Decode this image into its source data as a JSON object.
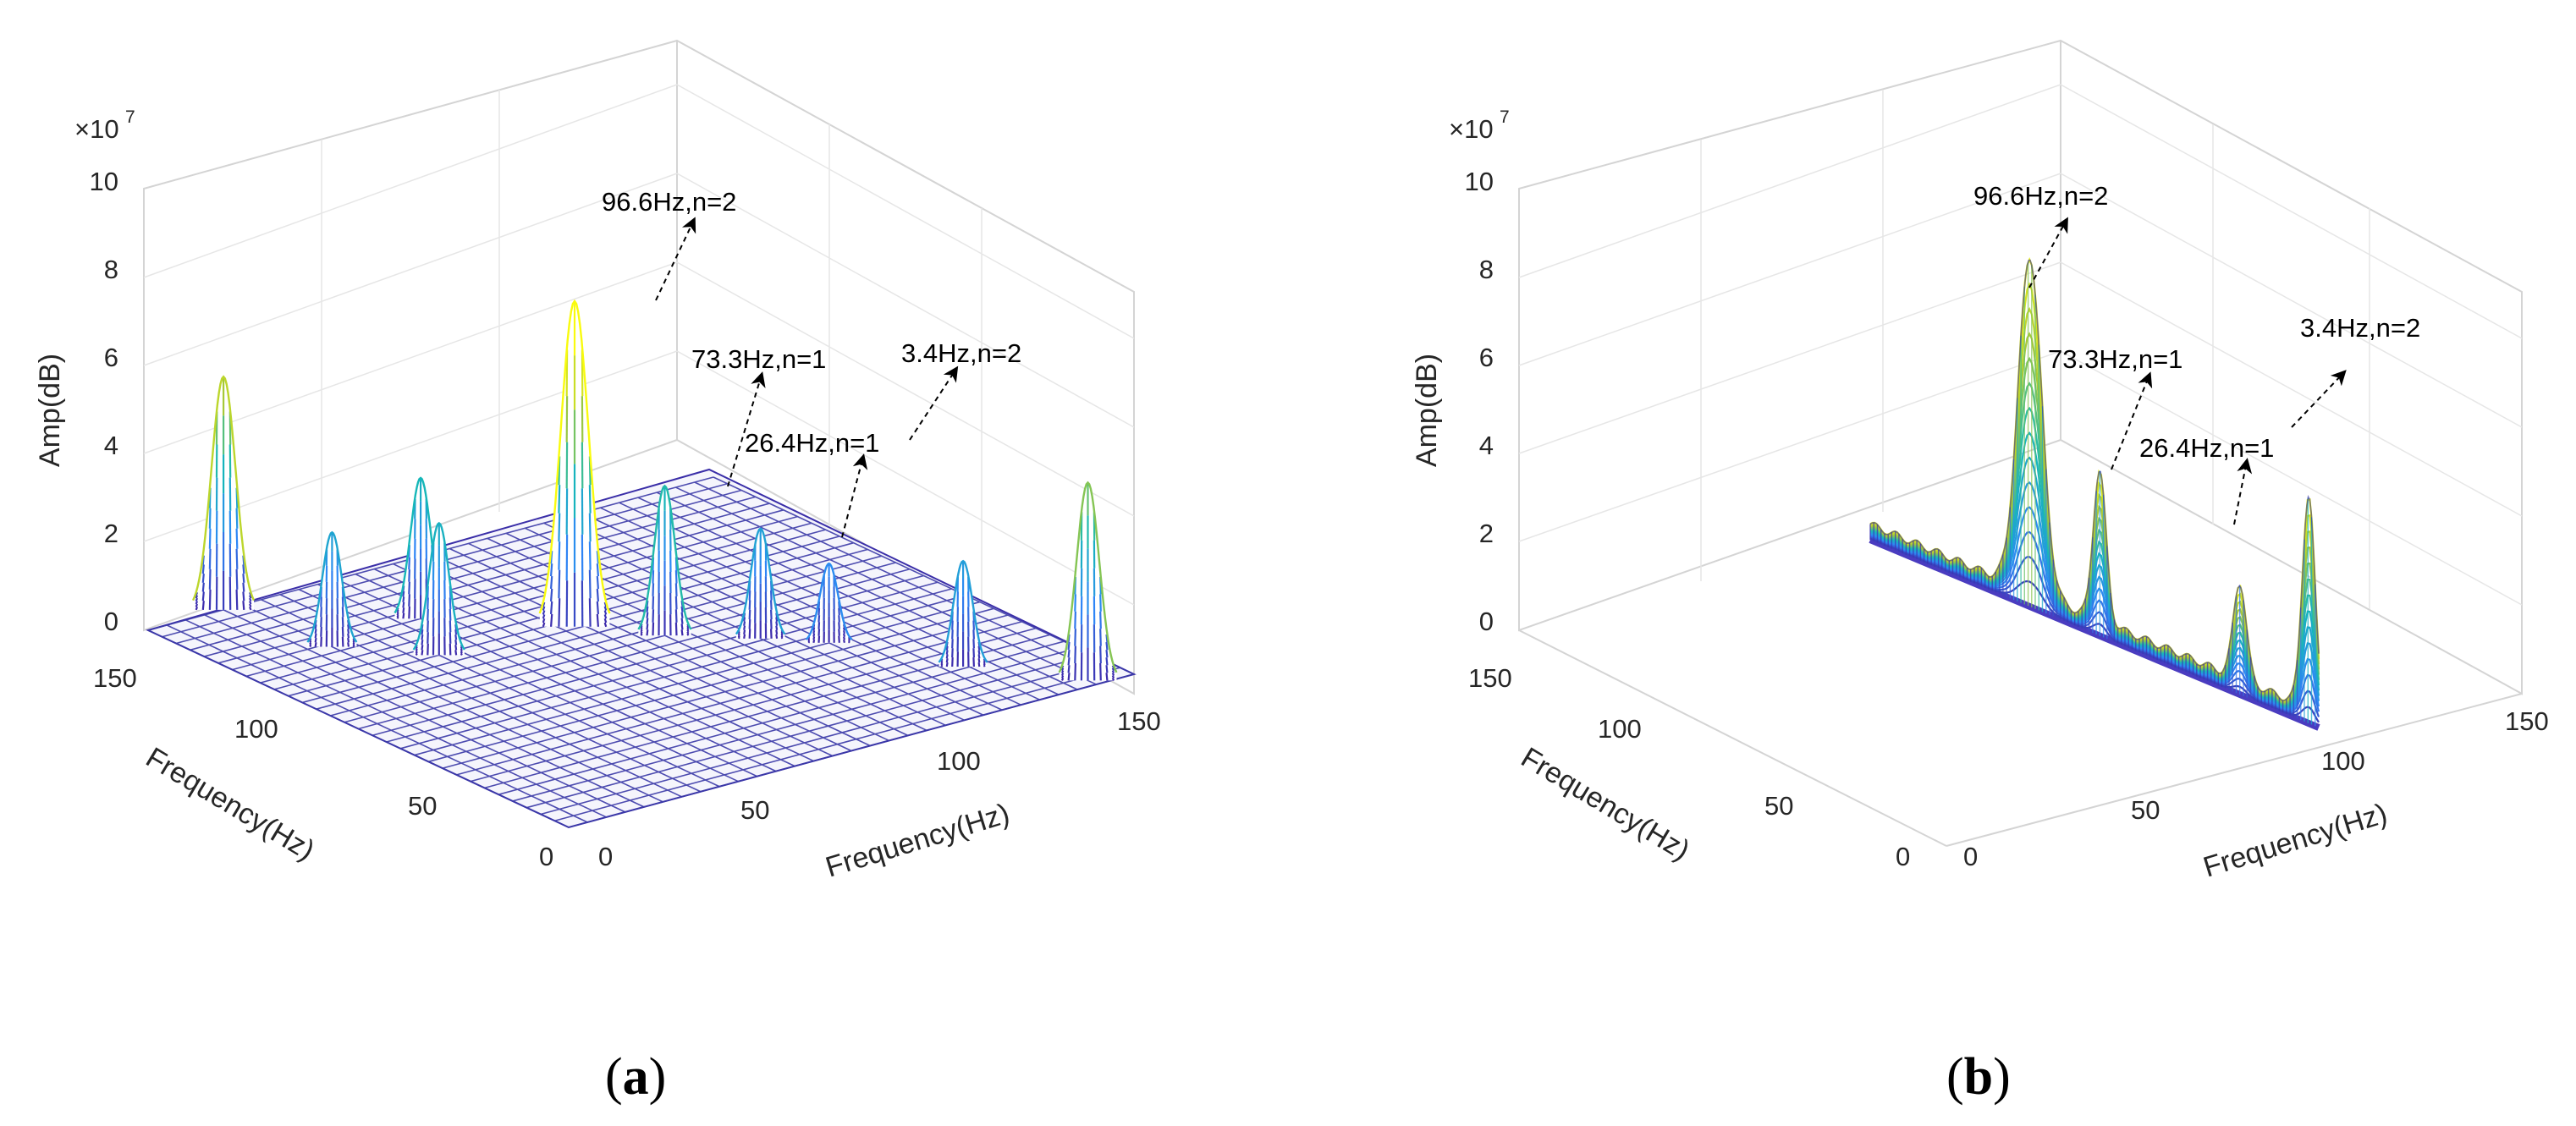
{
  "figure": {
    "panels": [
      {
        "id": "a",
        "label_open": "(",
        "label_letter": "a",
        "label_close": ")"
      },
      {
        "id": "b",
        "label_open": "(",
        "label_letter": "b",
        "label_close": ")"
      }
    ]
  },
  "chart_data": [
    {
      "type": "surface",
      "panel": "a",
      "title": "",
      "zlabel": "Amp(dB)",
      "xlabel": "Frequency(Hz)",
      "ylabel": "Frequency(Hz)",
      "z_multiplier": "×10",
      "z_exponent": "7",
      "zlim": [
        0,
        10
      ],
      "z_ticks": [
        "0",
        "2",
        "4",
        "6",
        "8",
        "10"
      ],
      "x_ticks": [
        "0",
        "50",
        "100",
        "150"
      ],
      "y_ticks": [
        "0",
        "50",
        "100",
        "150"
      ],
      "xlim": [
        0,
        150
      ],
      "ylim": [
        0,
        150
      ],
      "colormap": "parula",
      "peaks": [
        {
          "f1": 20,
          "f2": 150,
          "amp": 5.3
        },
        {
          "f1": 25,
          "f2": 118,
          "amp": 2.6
        },
        {
          "f1": 40,
          "f2": 100,
          "amp": 3.0
        },
        {
          "f1": 73,
          "f2": 96,
          "amp": 7.4
        },
        {
          "f1": 50,
          "f2": 120,
          "amp": 3.2
        },
        {
          "f1": 85,
          "f2": 80,
          "amp": 3.4
        },
        {
          "f1": 100,
          "f2": 66,
          "amp": 2.5
        },
        {
          "f1": 110,
          "f2": 55,
          "amp": 1.8
        },
        {
          "f1": 124,
          "f2": 26,
          "amp": 2.4
        },
        {
          "f1": 140,
          "f2": 3,
          "amp": 4.5
        }
      ],
      "annotations": [
        {
          "text": "96.6Hz,n=2"
        },
        {
          "text": "73.3Hz,n=1"
        },
        {
          "text": "26.4Hz,n=1"
        },
        {
          "text": "3.4Hz,n=2"
        }
      ]
    },
    {
      "type": "surface",
      "panel": "b",
      "title": "",
      "zlabel": "Amp(dB)",
      "xlabel": "Frequency(Hz)",
      "ylabel": "Frequency(Hz)",
      "z_multiplier": "×10",
      "z_exponent": "7",
      "zlim": [
        0,
        10
      ],
      "z_ticks": [
        "0",
        "2",
        "4",
        "6",
        "8",
        "10"
      ],
      "x_ticks": [
        "0",
        "50",
        "100",
        "150"
      ],
      "y_ticks": [
        "0",
        "50",
        "100",
        "150"
      ],
      "xlim": [
        0,
        150
      ],
      "ylim": [
        0,
        150
      ],
      "colormap": "parula",
      "slice": "profile along one frequency axis",
      "peaks": [
        {
          "freq": 96.6,
          "amp": 7.6
        },
        {
          "freq": 73.3,
          "amp": 3.4
        },
        {
          "freq": 26.4,
          "amp": 2.2
        },
        {
          "freq": 3.4,
          "amp": 4.8
        }
      ],
      "annotations": [
        {
          "text": "96.6Hz,n=2"
        },
        {
          "text": "73.3Hz,n=1"
        },
        {
          "text": "26.4Hz,n=1"
        },
        {
          "text": "3.4Hz,n=2"
        }
      ]
    }
  ]
}
